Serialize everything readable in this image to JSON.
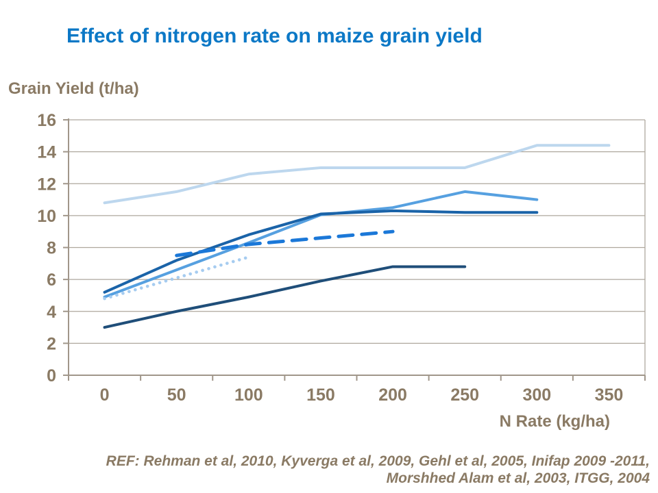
{
  "title": "Effect of nitrogen rate on maize grain yield",
  "y_axis_label": "Grain Yield (t/ha)",
  "x_axis_label": "N Rate (kg/ha)",
  "footer": {
    "ref_line1": "REF: Rehman et al, 2010, Kyverga et al, 2009, Gehl et al, 2005, Inifap 2009 -2011,",
    "ref_line2": "Morshhed Alam et al, 2003, ITGG, 2004"
  },
  "colors": {
    "title_blue": "#0C78C6",
    "label_brown": "#8A7A64",
    "axis_line": "#A0968A",
    "gridline": "#AEA79D"
  },
  "chart_data": {
    "type": "line",
    "title": "Effect of nitrogen rate on maize grain yield",
    "xlabel": "N Rate (kg/ha)",
    "ylabel": "Grain Yield (t/ha)",
    "categories": [
      0,
      50,
      100,
      150,
      200,
      250,
      300,
      350
    ],
    "yticks": [
      0,
      2,
      4,
      6,
      8,
      10,
      12,
      14,
      16
    ],
    "ylim": [
      0,
      16
    ],
    "grid": "horizontal-major",
    "legend_position": "none",
    "series": [
      {
        "name": "study-light-blue-solid",
        "style": "solid",
        "color": "#BDD7EE",
        "values": [
          10.8,
          11.5,
          12.6,
          13.0,
          13.0,
          13.0,
          14.4,
          14.4
        ]
      },
      {
        "name": "study-medium-blue-solid",
        "style": "solid",
        "color": "#56A0E0",
        "values": [
          4.9,
          6.6,
          8.3,
          10.05,
          10.5,
          11.5,
          11.0,
          null
        ]
      },
      {
        "name": "study-dark-blue-solid",
        "style": "solid",
        "color": "#1A63A8",
        "values": [
          5.2,
          7.2,
          8.8,
          10.1,
          10.3,
          10.2,
          10.2,
          null
        ]
      },
      {
        "name": "study-navy-solid",
        "style": "solid",
        "color": "#1F4E79",
        "values": [
          3.0,
          4.0,
          4.9,
          5.9,
          6.8,
          6.8,
          null,
          null
        ]
      },
      {
        "name": "study-bright-blue-dashed",
        "style": "dashed",
        "color": "#1B78D8",
        "values": [
          null,
          7.5,
          8.2,
          8.6,
          9.0,
          null,
          null,
          null
        ]
      },
      {
        "name": "study-pale-blue-dotted",
        "style": "dotted",
        "color": "#A6CCF0",
        "values": [
          4.8,
          6.1,
          7.4,
          null,
          null,
          null,
          null,
          null
        ]
      }
    ]
  }
}
